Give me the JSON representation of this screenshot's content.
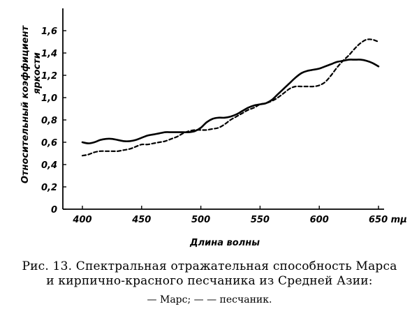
{
  "chart_data": {
    "type": "line",
    "x_unit": "mμ",
    "xlabel": "Длина волны",
    "ylabel_line1": "Относительный коэффициент",
    "ylabel_line2": "яркости",
    "xlim": [
      400,
      650
    ],
    "ylim": [
      0,
      1.8
    ],
    "x_ticks": [
      400,
      450,
      500,
      550,
      600,
      650
    ],
    "x_tick_labels": [
      "400",
      "450",
      "500",
      "550",
      "600",
      "650 mμ"
    ],
    "y_ticks": [
      0,
      0.2,
      0.4,
      0.6,
      0.8,
      1.0,
      1.2,
      1.4,
      1.6
    ],
    "y_tick_labels": [
      "0",
      "0,2",
      "0,4",
      "0,6",
      "0,8",
      "1,0",
      "1,2",
      "1,4",
      "1,6"
    ],
    "series": [
      {
        "style": "solid",
        "x": [
          400,
          405,
          410,
          415,
          420,
          425,
          430,
          435,
          440,
          445,
          450,
          455,
          460,
          465,
          470,
          475,
          480,
          485,
          490,
          495,
          500,
          505,
          510,
          515,
          520,
          525,
          530,
          535,
          540,
          545,
          550,
          555,
          560,
          565,
          570,
          575,
          580,
          585,
          590,
          595,
          600,
          605,
          610,
          615,
          620,
          625,
          630,
          635,
          640,
          645,
          650
        ],
        "values": [
          0.6,
          0.59,
          0.6,
          0.62,
          0.63,
          0.63,
          0.62,
          0.61,
          0.61,
          0.62,
          0.64,
          0.66,
          0.67,
          0.68,
          0.69,
          0.69,
          0.69,
          0.69,
          0.69,
          0.7,
          0.73,
          0.78,
          0.81,
          0.82,
          0.82,
          0.83,
          0.85,
          0.88,
          0.91,
          0.93,
          0.94,
          0.95,
          0.98,
          1.03,
          1.08,
          1.13,
          1.18,
          1.22,
          1.24,
          1.25,
          1.26,
          1.28,
          1.3,
          1.32,
          1.33,
          1.34,
          1.34,
          1.34,
          1.33,
          1.31,
          1.28
        ]
      },
      {
        "style": "dashed",
        "x": [
          400,
          405,
          410,
          415,
          420,
          425,
          430,
          435,
          440,
          445,
          450,
          455,
          460,
          465,
          470,
          475,
          480,
          485,
          490,
          495,
          500,
          505,
          510,
          515,
          520,
          525,
          530,
          535,
          540,
          545,
          550,
          555,
          560,
          565,
          570,
          575,
          580,
          585,
          590,
          595,
          600,
          605,
          610,
          615,
          620,
          625,
          630,
          635,
          640,
          645,
          650
        ],
        "values": [
          0.48,
          0.49,
          0.51,
          0.52,
          0.52,
          0.52,
          0.52,
          0.53,
          0.54,
          0.56,
          0.58,
          0.58,
          0.59,
          0.6,
          0.61,
          0.63,
          0.65,
          0.68,
          0.7,
          0.71,
          0.71,
          0.71,
          0.72,
          0.73,
          0.76,
          0.8,
          0.83,
          0.86,
          0.89,
          0.91,
          0.94,
          0.95,
          0.97,
          1.0,
          1.04,
          1.08,
          1.1,
          1.1,
          1.1,
          1.1,
          1.11,
          1.14,
          1.2,
          1.27,
          1.33,
          1.38,
          1.44,
          1.49,
          1.52,
          1.52,
          1.5
        ]
      }
    ]
  },
  "caption": {
    "line1": "Рис. 13. Спектральная отражательная  способность Марса",
    "line2": "и кирпично-красного песчаника из Средней Азии:",
    "line3": "— Марс; — — песчаник."
  },
  "colors": {
    "ink": "#000000",
    "background": "#ffffff"
  }
}
